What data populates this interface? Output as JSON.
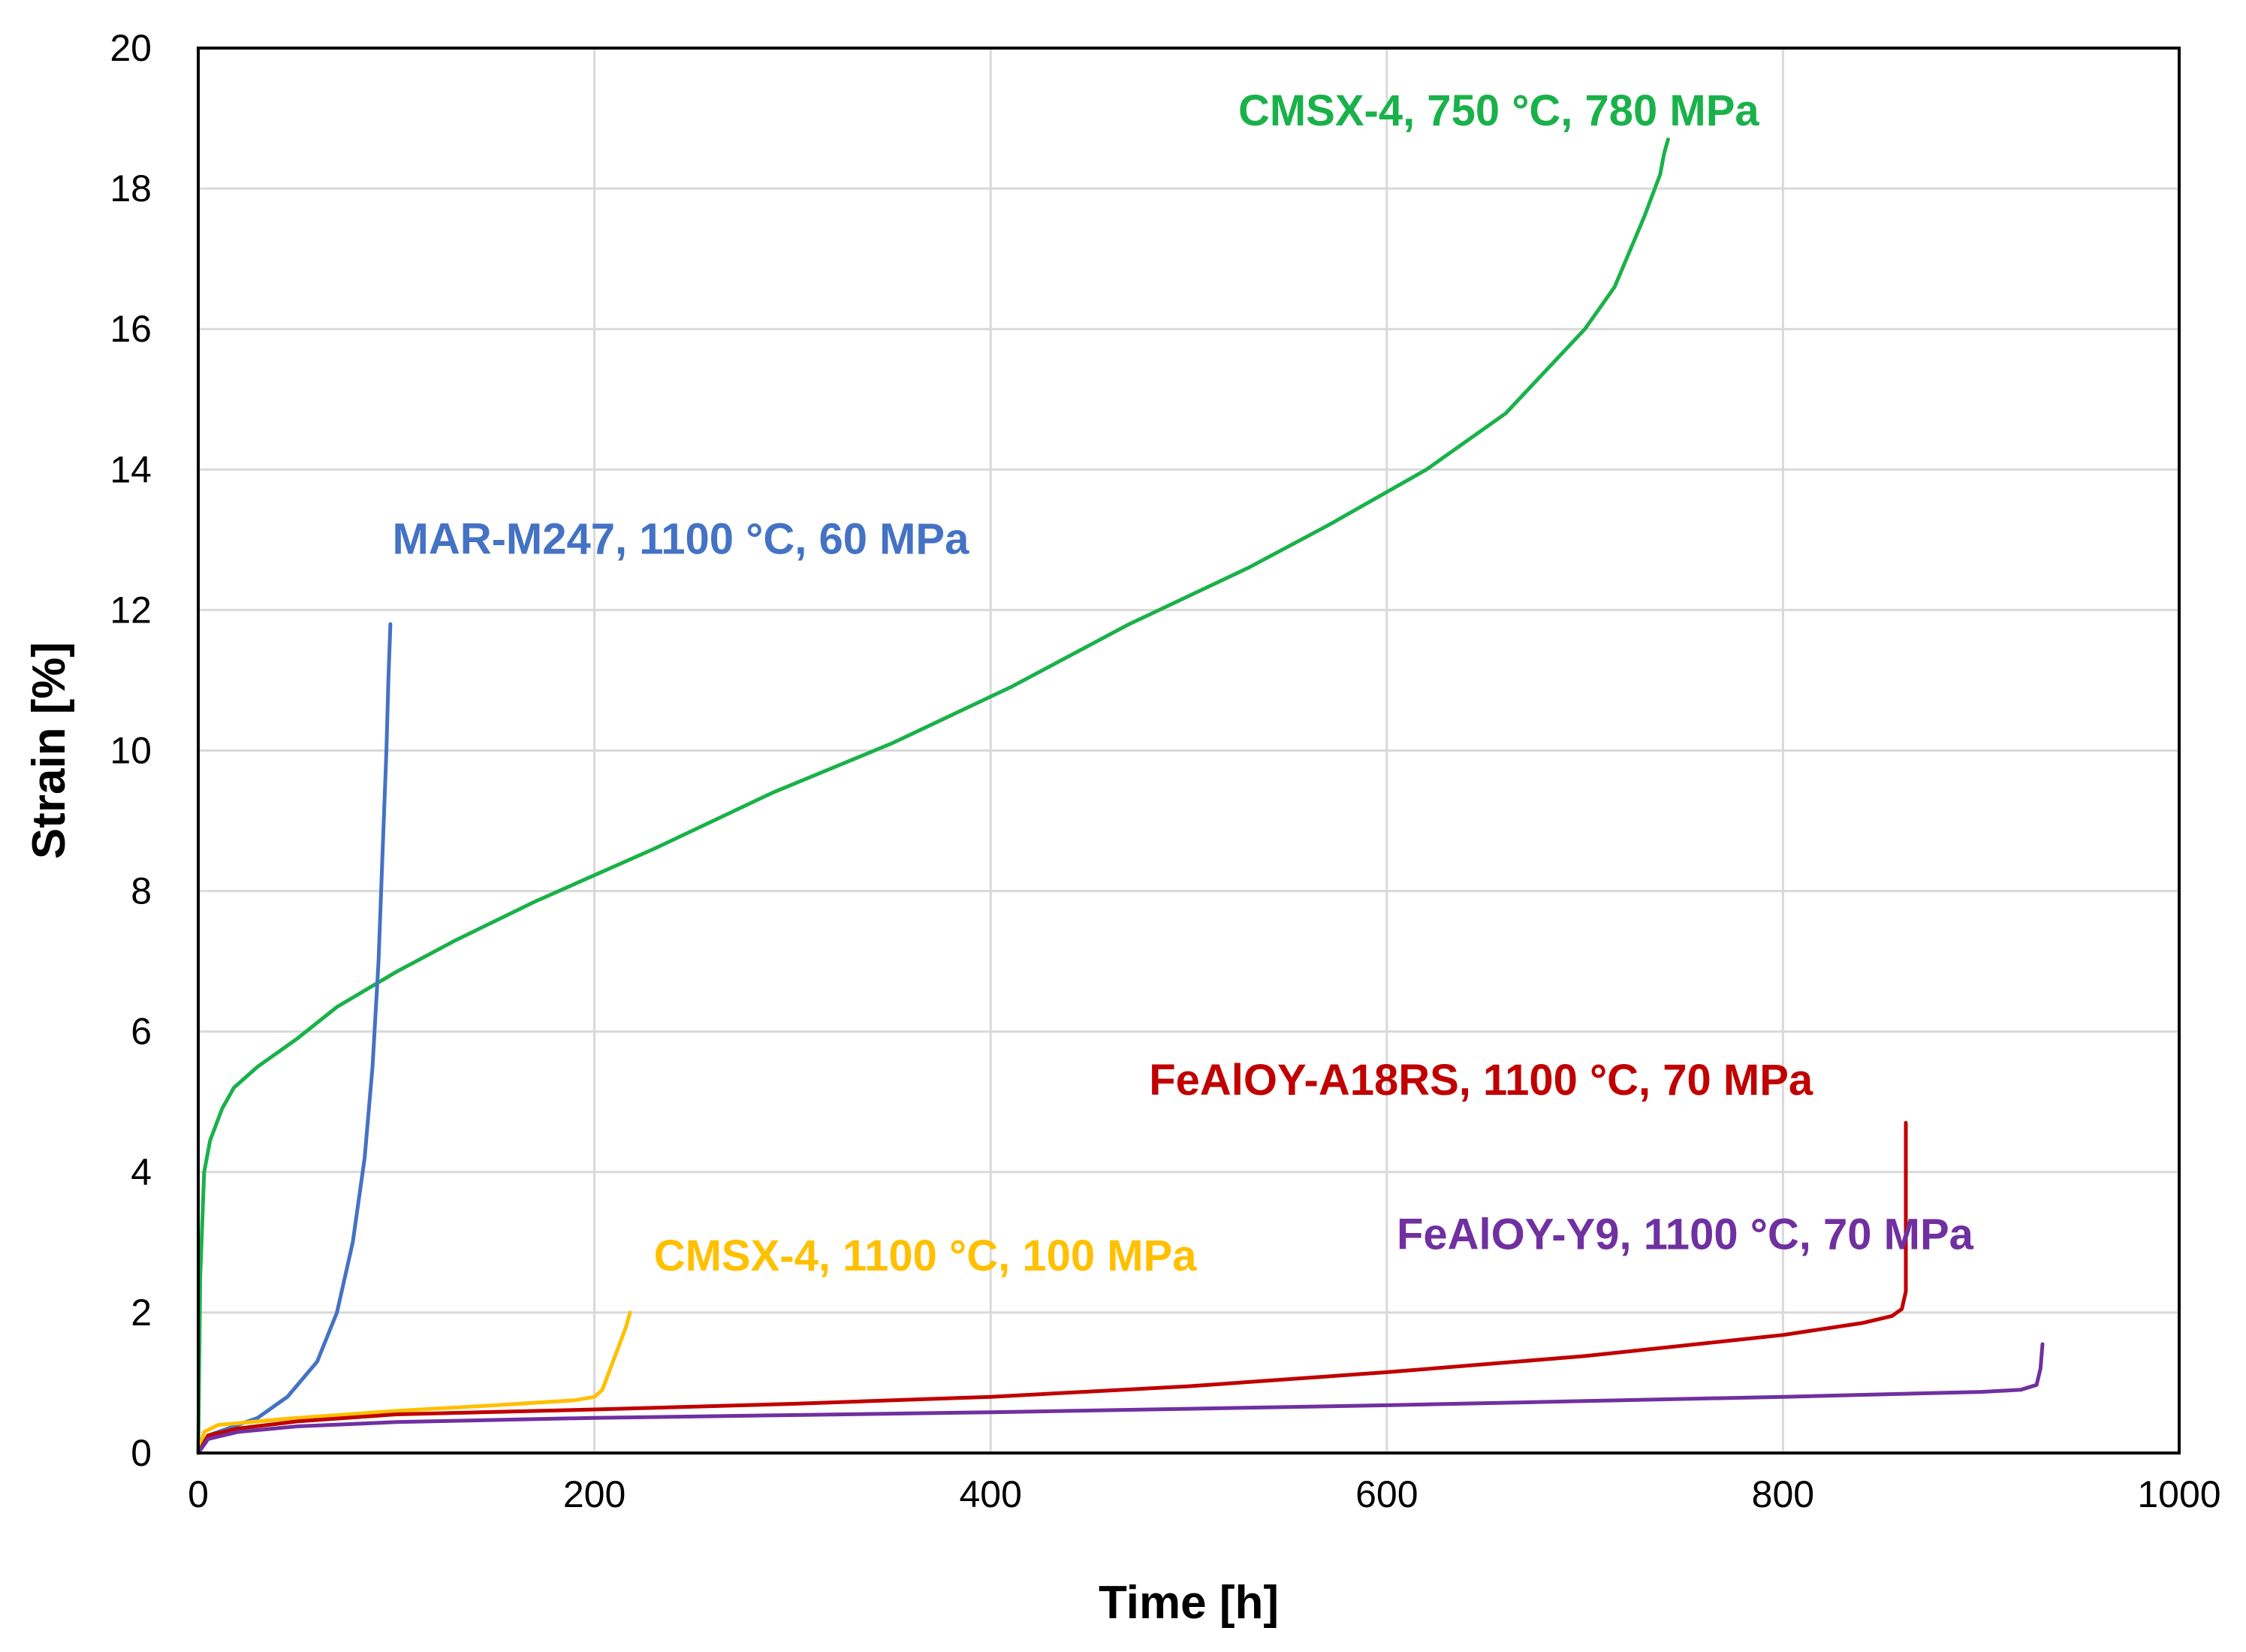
{
  "chart_data": {
    "type": "line",
    "title": "",
    "xlabel": "Time [h]",
    "ylabel": "Strain [%]",
    "xlim": [
      0,
      1000
    ],
    "ylim": [
      0,
      20
    ],
    "xticks": [
      0,
      200,
      400,
      600,
      800,
      1000
    ],
    "yticks": [
      0,
      2,
      4,
      6,
      8,
      10,
      12,
      14,
      16,
      18,
      20
    ],
    "grid": true,
    "legend": "inline labels",
    "series": [
      {
        "name": "CMSX-4, 750 °C, 780 MPa",
        "color": "#1ab14a",
        "x": [
          0,
          1,
          3,
          6,
          8,
          12,
          18,
          30,
          50,
          70,
          100,
          130,
          170,
          230,
          290,
          350,
          410,
          470,
          530,
          570,
          620,
          660,
          700,
          715,
          730,
          738,
          740,
          742
        ],
        "y": [
          0,
          2.5,
          4.0,
          4.45,
          4.6,
          4.9,
          5.2,
          5.5,
          5.9,
          6.35,
          6.85,
          7.3,
          7.85,
          8.6,
          9.4,
          10.1,
          10.9,
          11.8,
          12.6,
          13.2,
          14.0,
          14.8,
          16.0,
          16.6,
          17.6,
          18.2,
          18.5,
          18.7
        ]
      },
      {
        "name": "MAR-M247, 1100 °C, 60 MPa",
        "color": "#4472c4",
        "x": [
          0,
          5,
          15,
          30,
          45,
          60,
          70,
          78,
          84,
          88,
          91,
          93,
          95,
          96,
          97
        ],
        "y": [
          0,
          0.25,
          0.35,
          0.5,
          0.8,
          1.3,
          2.0,
          3.0,
          4.2,
          5.5,
          7.0,
          8.5,
          10.0,
          11.0,
          11.8
        ]
      },
      {
        "name": "CMSX-4, 1100 °C, 100 MPa",
        "color": "#ffc000",
        "x": [
          0,
          3,
          10,
          50,
          100,
          150,
          190,
          200,
          204,
          208,
          212,
          216,
          218
        ],
        "y": [
          0,
          0.3,
          0.4,
          0.5,
          0.6,
          0.68,
          0.75,
          0.8,
          0.9,
          1.2,
          1.5,
          1.8,
          2.0
        ]
      },
      {
        "name": "FeAlOY-A18RS, 1100 °C, 70 MPa",
        "color": "#c00000",
        "x": [
          0,
          5,
          20,
          50,
          100,
          200,
          300,
          400,
          500,
          600,
          700,
          800,
          840,
          855,
          860,
          862,
          862,
          862
        ],
        "y": [
          0,
          0.25,
          0.35,
          0.45,
          0.55,
          0.62,
          0.7,
          0.8,
          0.95,
          1.15,
          1.38,
          1.68,
          1.85,
          1.95,
          2.05,
          2.3,
          3.5,
          4.7
        ]
      },
      {
        "name": "FeAlOY-Y9, 1100 °C, 70 MPa",
        "color": "#7030a0",
        "x": [
          0,
          5,
          20,
          50,
          100,
          200,
          300,
          400,
          500,
          600,
          700,
          800,
          900,
          920,
          928,
          930,
          931
        ],
        "y": [
          0,
          0.2,
          0.3,
          0.38,
          0.44,
          0.5,
          0.54,
          0.58,
          0.63,
          0.68,
          0.74,
          0.8,
          0.87,
          0.9,
          0.97,
          1.2,
          1.55
        ]
      }
    ],
    "annotations": [
      {
        "text": "CMSX-4, 750 °C, 780 MPa",
        "color": "#1ab14a",
        "x": 525,
        "y": 18.9
      },
      {
        "text": "MAR-M247, 1100 °C, 60 MPa",
        "color": "#4472c4",
        "x": 98,
        "y": 12.8
      },
      {
        "text": "CMSX-4, 1100 °C, 100 MPa",
        "color": "#ffc000",
        "x": 230,
        "y": 2.6
      },
      {
        "text": "FeAlOY-A18RS, 1100 °C, 70 MPa",
        "color": "#c00000",
        "x": 480,
        "y": 5.1
      },
      {
        "text": "FeAlOY-Y9, 1100 °C, 70 MPa",
        "color": "#7030a0",
        "x": 605,
        "y": 2.9
      }
    ]
  }
}
